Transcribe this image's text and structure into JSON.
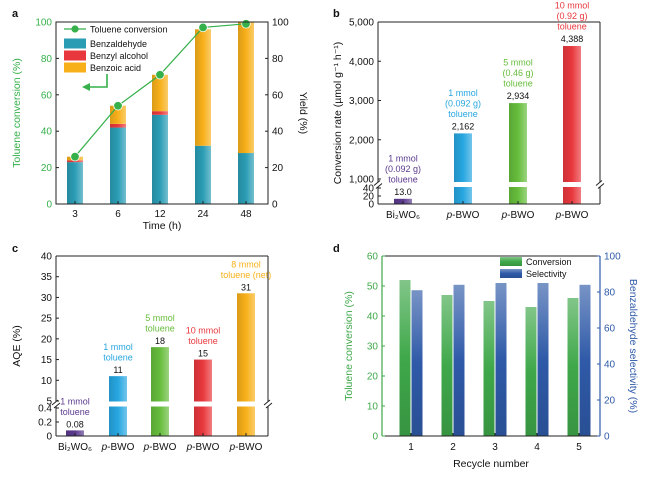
{
  "chart_data": [
    {
      "panel": "a",
      "type": "bar",
      "categories": [
        "3",
        "6",
        "12",
        "24",
        "48"
      ],
      "xlabel": "Time (h)",
      "ylabel_left": "Toluene conversion (%)",
      "ylabel_right": "Yield (%)",
      "ylim_left": [
        0,
        100
      ],
      "ylim_right": [
        0,
        100
      ],
      "left_ticks": [
        "0",
        "20",
        "40",
        "60",
        "80",
        "100"
      ],
      "right_ticks": [
        "0",
        "20",
        "40",
        "60",
        "80",
        "100"
      ],
      "legend_position": "top-left",
      "series": [
        {
          "name": "Benzaldehyde",
          "color": "#2a9db5",
          "values": [
            23,
            42,
            49,
            32,
            28
          ]
        },
        {
          "name": "Benzyl alcohol",
          "color": "#e8383d",
          "values": [
            1,
            2,
            2,
            0,
            0
          ]
        },
        {
          "name": "Benzoic acid",
          "color": "#f8b01a",
          "values": [
            2,
            10,
            20,
            64,
            72
          ]
        }
      ],
      "line": {
        "name": "Toluene conversion",
        "color": "#35b04a",
        "values": [
          26,
          54,
          71,
          97,
          99
        ]
      }
    },
    {
      "panel": "b",
      "type": "bar",
      "categories": [
        "Bi₂WO₆",
        "p-BWO",
        "p-BWO",
        "p-BWO"
      ],
      "ylabel": "Conversion rate (µmol g⁻¹ h⁻¹)",
      "ylim": [
        0,
        5000
      ],
      "yticks": [
        "0",
        "20",
        "40",
        "1,000",
        "2,000",
        "3,000",
        "4,000",
        "5,000"
      ],
      "values": [
        13.0,
        2162,
        2934,
        4388
      ],
      "value_labels": [
        "13.0",
        "2,162",
        "2,934",
        "4,388"
      ],
      "colors": [
        "#5b3a8e",
        "#27a6e0",
        "#66bd3c",
        "#e8383d"
      ],
      "annotations": [
        {
          "lines": [
            "1 mmol",
            "(0.092 g)",
            "toluene"
          ],
          "color": "#5b3a8e"
        },
        {
          "lines": [
            "1 mmol",
            "(0.092 g)",
            "toluene"
          ],
          "color": "#27a6e0"
        },
        {
          "lines": [
            "5 mmol",
            "(0.46 g)",
            "toluene"
          ],
          "color": "#66bd3c"
        },
        {
          "lines": [
            "10 mmol",
            "(0.92 g)",
            "toluene"
          ],
          "color": "#e8383d"
        }
      ]
    },
    {
      "panel": "c",
      "type": "bar",
      "categories": [
        "Bi₂WO₆",
        "p-BWO",
        "p-BWO",
        "p-BWO",
        "p-BWO"
      ],
      "ylabel": "AQE (%)",
      "ylim": [
        0,
        40
      ],
      "yticks": [
        "0",
        "0.2",
        "0.4",
        "5",
        "10",
        "15",
        "20",
        "25",
        "30",
        "35",
        "40"
      ],
      "values": [
        0.08,
        11,
        18,
        15,
        31
      ],
      "value_labels": [
        "0.08",
        "11",
        "18",
        "15",
        "31"
      ],
      "colors": [
        "#5b3a8e",
        "#27a6e0",
        "#66bd3c",
        "#e8383d",
        "#f8b01a"
      ],
      "annotations": [
        {
          "lines": [
            "1 mmol",
            "toluene"
          ],
          "color": "#5b3a8e"
        },
        {
          "lines": [
            "1 mmol",
            "toluene"
          ],
          "color": "#27a6e0"
        },
        {
          "lines": [
            "5 mmol",
            "toluene"
          ],
          "color": "#66bd3c"
        },
        {
          "lines": [
            "10 mmol",
            "toluene"
          ],
          "color": "#e8383d"
        },
        {
          "lines": [
            "8 mmol",
            "toluene (net)"
          ],
          "color": "#f8b01a"
        }
      ]
    },
    {
      "panel": "d",
      "type": "bar",
      "categories": [
        "1",
        "2",
        "3",
        "4",
        "5"
      ],
      "xlabel": "Recycle number",
      "ylabel_left": "Toluene conversion (%)",
      "ylabel_right": "Benzaldehyde selectivity (%)",
      "ylim_left": [
        0,
        60
      ],
      "ylim_right": [
        0,
        100
      ],
      "left_ticks": [
        "0",
        "10",
        "20",
        "30",
        "40",
        "50",
        "60"
      ],
      "right_ticks": [
        "0",
        "20",
        "40",
        "60",
        "80",
        "100"
      ],
      "legend_position": "top-right",
      "series": [
        {
          "name": "Conversion",
          "axis": "left",
          "color": "#3fa84a",
          "values": [
            52,
            47,
            45,
            43,
            46
          ]
        },
        {
          "name": "Selectivity",
          "axis": "right",
          "color": "#2f5aa8",
          "values": [
            81,
            84,
            85,
            85,
            84
          ]
        }
      ]
    }
  ]
}
